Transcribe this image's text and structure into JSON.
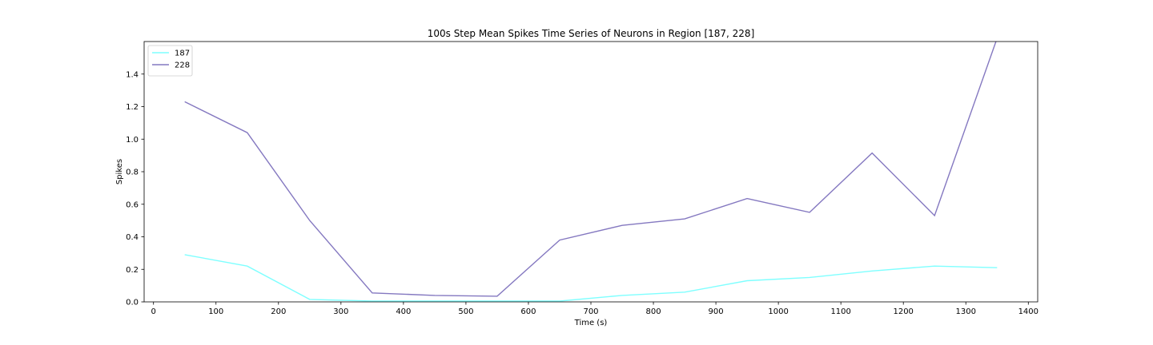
{
  "chart_data": {
    "type": "line",
    "title": "100s Step Mean Spikes Time Series of Neurons in Region [187, 228]",
    "xlabel": "Time (s)",
    "ylabel": "Spikes",
    "xlim": [
      -15,
      1415
    ],
    "ylim": [
      0,
      1.6
    ],
    "xticks": [
      0,
      100,
      200,
      300,
      400,
      500,
      600,
      700,
      800,
      900,
      1000,
      1100,
      1200,
      1300,
      1400
    ],
    "yticks": [
      0.0,
      0.2,
      0.4,
      0.6,
      0.8,
      1.0,
      1.2,
      1.4
    ],
    "ytick_labels": [
      "0.0",
      "0.2",
      "0.4",
      "0.6",
      "0.8",
      "1.0",
      "1.2",
      "1.4"
    ],
    "grid": false,
    "legend_position": "upper-left",
    "x": [
      50,
      150,
      250,
      350,
      450,
      550,
      650,
      750,
      850,
      950,
      1050,
      1150,
      1250,
      1350
    ],
    "series": [
      {
        "name": "187",
        "color": "#7fffff",
        "values": [
          0.29,
          0.22,
          0.015,
          0.005,
          0.005,
          0.005,
          0.005,
          0.04,
          0.06,
          0.13,
          0.15,
          0.19,
          0.22,
          0.21
        ]
      },
      {
        "name": "228",
        "color": "#8478c0",
        "values": [
          1.23,
          1.04,
          0.5,
          0.055,
          0.04,
          0.035,
          0.38,
          0.47,
          0.51,
          0.635,
          0.55,
          0.915,
          0.53,
          1.62
        ]
      }
    ]
  }
}
